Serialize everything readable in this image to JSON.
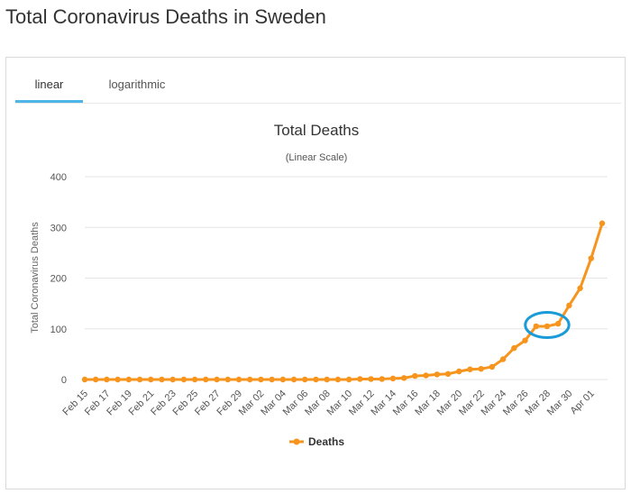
{
  "page": {
    "title": "Total Coronavirus Deaths in Sweden"
  },
  "tabs": [
    {
      "label": "linear",
      "active": true
    },
    {
      "label": "logarithmic",
      "active": false
    }
  ],
  "colors": {
    "series": "#f7941d",
    "highlight": "#1a9bd7",
    "tab_active": "#4cb6e8",
    "grid": "#e6e6e6"
  },
  "chart_data": {
    "type": "line",
    "title": "Total Deaths",
    "subtitle": "(Linear Scale)",
    "ylabel": "Total Coronavirus Deaths",
    "xlabel": "",
    "ylim": [
      0,
      400
    ],
    "yticks": [
      0,
      100,
      200,
      300,
      400
    ],
    "grid": true,
    "legend_position": "bottom-center",
    "x": [
      "Feb 15",
      "Feb 16",
      "Feb 17",
      "Feb 18",
      "Feb 19",
      "Feb 20",
      "Feb 21",
      "Feb 22",
      "Feb 23",
      "Feb 24",
      "Feb 25",
      "Feb 26",
      "Feb 27",
      "Feb 28",
      "Feb 29",
      "Mar 01",
      "Mar 02",
      "Mar 03",
      "Mar 04",
      "Mar 05",
      "Mar 06",
      "Mar 07",
      "Mar 08",
      "Mar 09",
      "Mar 10",
      "Mar 11",
      "Mar 12",
      "Mar 13",
      "Mar 14",
      "Mar 15",
      "Mar 16",
      "Mar 17",
      "Mar 18",
      "Mar 19",
      "Mar 20",
      "Mar 21",
      "Mar 22",
      "Mar 23",
      "Mar 24",
      "Mar 25",
      "Mar 26",
      "Mar 27",
      "Mar 28",
      "Mar 29",
      "Mar 30",
      "Mar 31",
      "Apr 01",
      "Apr 02"
    ],
    "x_tick_labels": [
      "Feb 15",
      "Feb 17",
      "Feb 19",
      "Feb 21",
      "Feb 23",
      "Feb 25",
      "Feb 27",
      "Feb 29",
      "Mar 02",
      "Mar 04",
      "Mar 06",
      "Mar 08",
      "Mar 10",
      "Mar 12",
      "Mar 14",
      "Mar 16",
      "Mar 18",
      "Mar 20",
      "Mar 22",
      "Mar 24",
      "Mar 26",
      "Mar 28",
      "Mar 30",
      "Apr 01"
    ],
    "series": [
      {
        "name": "Deaths",
        "values": [
          0,
          0,
          0,
          0,
          0,
          0,
          0,
          0,
          0,
          0,
          0,
          0,
          0,
          0,
          0,
          0,
          0,
          0,
          0,
          0,
          0,
          0,
          0,
          0,
          0,
          1,
          1,
          1,
          2,
          3,
          7,
          8,
          10,
          11,
          16,
          20,
          21,
          25,
          40,
          62,
          77,
          105,
          105,
          110,
          146,
          180,
          239,
          308
        ]
      }
    ],
    "annotations": [
      {
        "type": "circle",
        "from": "Mar 27",
        "to": "Mar 29"
      }
    ]
  }
}
